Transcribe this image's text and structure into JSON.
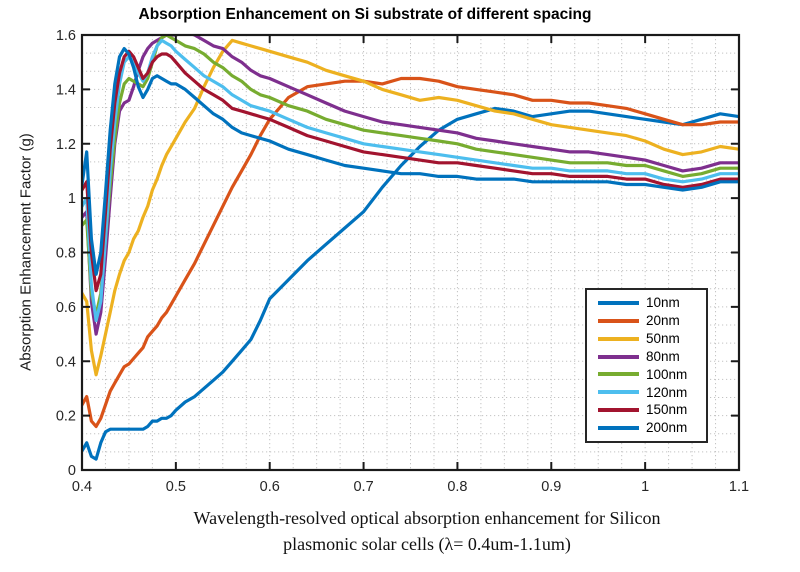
{
  "caption": {
    "line1": "Wavelength-resolved optical absorption enhancement for Silicon",
    "line2": "plasmonic solar cells (λ= 0.4um-1.1um)"
  },
  "chart_data": {
    "type": "line",
    "title": "Absorption Enhancement on Si substrate of different spacing",
    "xlabel": "",
    "ylabel": "Absorption Enhancement Factor (g)",
    "xlim": [
      0.4,
      1.1
    ],
    "ylim": [
      0,
      1.6
    ],
    "xtick_labels": [
      "0.4",
      "0.5",
      "0.6",
      "0.7",
      "0.8",
      "0.9",
      "1",
      "1.1"
    ],
    "xtick_values": [
      0.4,
      0.5,
      0.6,
      0.7,
      0.8,
      0.9,
      1.0,
      1.1
    ],
    "ytick_labels": [
      "0",
      "0.2",
      "0.4",
      "0.6",
      "0.8",
      "1",
      "1.2",
      "1.4",
      "1.6"
    ],
    "ytick_values": [
      0,
      0.2,
      0.4,
      0.6,
      0.8,
      1.0,
      1.2,
      1.4,
      1.6
    ],
    "grid": "dotted-minor",
    "legend_position": "inside-right-middle",
    "frame_color": "#1a1a1a",
    "grid_color": "#c3c3c3",
    "x": [
      0.4,
      0.405,
      0.41,
      0.415,
      0.42,
      0.425,
      0.43,
      0.435,
      0.44,
      0.445,
      0.45,
      0.455,
      0.46,
      0.465,
      0.47,
      0.475,
      0.48,
      0.485,
      0.49,
      0.495,
      0.5,
      0.51,
      0.52,
      0.53,
      0.54,
      0.55,
      0.56,
      0.57,
      0.58,
      0.59,
      0.6,
      0.62,
      0.64,
      0.66,
      0.68,
      0.7,
      0.72,
      0.74,
      0.76,
      0.78,
      0.8,
      0.82,
      0.84,
      0.86,
      0.88,
      0.9,
      0.92,
      0.94,
      0.96,
      0.98,
      1.0,
      1.02,
      1.04,
      1.06,
      1.08,
      1.1
    ],
    "series": [
      {
        "name": "10nm",
        "color": "#0072BD",
        "values": [
          0.07,
          0.1,
          0.05,
          0.04,
          0.1,
          0.14,
          0.15,
          0.15,
          0.15,
          0.15,
          0.15,
          0.15,
          0.15,
          0.15,
          0.16,
          0.18,
          0.18,
          0.19,
          0.19,
          0.2,
          0.22,
          0.25,
          0.27,
          0.3,
          0.33,
          0.36,
          0.4,
          0.44,
          0.48,
          0.55,
          0.63,
          0.7,
          0.77,
          0.83,
          0.89,
          0.95,
          1.04,
          1.12,
          1.19,
          1.25,
          1.29,
          1.31,
          1.33,
          1.32,
          1.3,
          1.31,
          1.32,
          1.32,
          1.31,
          1.3,
          1.29,
          1.28,
          1.27,
          1.29,
          1.31,
          1.3
        ]
      },
      {
        "name": "20nm",
        "color": "#D95319",
        "values": [
          0.24,
          0.27,
          0.18,
          0.16,
          0.19,
          0.24,
          0.29,
          0.32,
          0.35,
          0.38,
          0.39,
          0.41,
          0.43,
          0.45,
          0.49,
          0.51,
          0.53,
          0.56,
          0.58,
          0.61,
          0.64,
          0.7,
          0.76,
          0.83,
          0.9,
          0.97,
          1.04,
          1.1,
          1.16,
          1.23,
          1.29,
          1.37,
          1.41,
          1.42,
          1.43,
          1.43,
          1.42,
          1.44,
          1.44,
          1.43,
          1.41,
          1.4,
          1.39,
          1.38,
          1.36,
          1.36,
          1.35,
          1.35,
          1.34,
          1.33,
          1.31,
          1.29,
          1.27,
          1.27,
          1.28,
          1.28
        ]
      },
      {
        "name": "50nm",
        "color": "#EDB120",
        "values": [
          0.65,
          0.62,
          0.44,
          0.35,
          0.42,
          0.5,
          0.58,
          0.66,
          0.72,
          0.77,
          0.8,
          0.85,
          0.88,
          0.93,
          0.97,
          1.03,
          1.07,
          1.12,
          1.16,
          1.19,
          1.22,
          1.28,
          1.33,
          1.41,
          1.48,
          1.54,
          1.58,
          1.57,
          1.56,
          1.55,
          1.54,
          1.52,
          1.5,
          1.47,
          1.45,
          1.43,
          1.4,
          1.38,
          1.36,
          1.37,
          1.36,
          1.34,
          1.32,
          1.31,
          1.29,
          1.27,
          1.26,
          1.25,
          1.24,
          1.23,
          1.21,
          1.18,
          1.16,
          1.17,
          1.19,
          1.18
        ]
      },
      {
        "name": "80nm",
        "color": "#7E2F8E",
        "values": [
          0.93,
          0.95,
          0.62,
          0.5,
          0.58,
          0.78,
          1.0,
          1.2,
          1.32,
          1.35,
          1.36,
          1.41,
          1.47,
          1.52,
          1.55,
          1.57,
          1.58,
          1.59,
          1.6,
          1.6,
          1.6,
          1.61,
          1.6,
          1.58,
          1.56,
          1.55,
          1.52,
          1.5,
          1.47,
          1.45,
          1.44,
          1.41,
          1.38,
          1.35,
          1.32,
          1.3,
          1.28,
          1.27,
          1.26,
          1.25,
          1.24,
          1.22,
          1.21,
          1.2,
          1.19,
          1.18,
          1.17,
          1.17,
          1.16,
          1.15,
          1.14,
          1.12,
          1.1,
          1.11,
          1.13,
          1.13
        ]
      },
      {
        "name": "100nm",
        "color": "#77AC30",
        "values": [
          0.9,
          0.92,
          0.65,
          0.57,
          0.65,
          0.85,
          1.05,
          1.22,
          1.35,
          1.42,
          1.44,
          1.43,
          1.42,
          1.41,
          1.44,
          1.5,
          1.56,
          1.59,
          1.6,
          1.59,
          1.58,
          1.56,
          1.55,
          1.53,
          1.5,
          1.48,
          1.45,
          1.43,
          1.4,
          1.38,
          1.37,
          1.34,
          1.32,
          1.29,
          1.27,
          1.25,
          1.24,
          1.23,
          1.22,
          1.21,
          1.2,
          1.18,
          1.17,
          1.16,
          1.15,
          1.14,
          1.13,
          1.13,
          1.13,
          1.12,
          1.12,
          1.1,
          1.08,
          1.09,
          1.11,
          1.11
        ]
      },
      {
        "name": "120nm",
        "color": "#4DBEEE",
        "values": [
          0.97,
          1.0,
          0.68,
          0.55,
          0.62,
          0.85,
          1.1,
          1.28,
          1.42,
          1.5,
          1.52,
          1.5,
          1.46,
          1.43,
          1.46,
          1.52,
          1.56,
          1.58,
          1.57,
          1.56,
          1.54,
          1.51,
          1.48,
          1.45,
          1.43,
          1.41,
          1.38,
          1.36,
          1.34,
          1.33,
          1.32,
          1.29,
          1.26,
          1.24,
          1.22,
          1.2,
          1.19,
          1.18,
          1.17,
          1.16,
          1.15,
          1.14,
          1.13,
          1.12,
          1.11,
          1.11,
          1.1,
          1.1,
          1.1,
          1.09,
          1.09,
          1.07,
          1.06,
          1.07,
          1.09,
          1.09
        ]
      },
      {
        "name": "150nm",
        "color": "#A2142F",
        "values": [
          1.03,
          1.06,
          0.8,
          0.66,
          0.72,
          0.95,
          1.18,
          1.35,
          1.46,
          1.52,
          1.54,
          1.52,
          1.48,
          1.44,
          1.46,
          1.5,
          1.52,
          1.53,
          1.53,
          1.52,
          1.5,
          1.46,
          1.43,
          1.4,
          1.38,
          1.36,
          1.33,
          1.32,
          1.31,
          1.3,
          1.29,
          1.26,
          1.23,
          1.21,
          1.19,
          1.17,
          1.16,
          1.15,
          1.14,
          1.13,
          1.13,
          1.12,
          1.11,
          1.1,
          1.09,
          1.09,
          1.08,
          1.08,
          1.08,
          1.07,
          1.07,
          1.05,
          1.04,
          1.05,
          1.07,
          1.07
        ]
      },
      {
        "name": "200nm",
        "color": "#0072BD",
        "values": [
          1.05,
          1.17,
          0.85,
          0.72,
          0.8,
          1.02,
          1.25,
          1.42,
          1.52,
          1.55,
          1.53,
          1.48,
          1.41,
          1.37,
          1.4,
          1.44,
          1.45,
          1.44,
          1.43,
          1.42,
          1.42,
          1.4,
          1.37,
          1.34,
          1.31,
          1.29,
          1.26,
          1.24,
          1.23,
          1.22,
          1.21,
          1.18,
          1.16,
          1.14,
          1.12,
          1.11,
          1.1,
          1.09,
          1.09,
          1.08,
          1.08,
          1.07,
          1.07,
          1.07,
          1.06,
          1.06,
          1.06,
          1.06,
          1.06,
          1.05,
          1.05,
          1.04,
          1.03,
          1.04,
          1.06,
          1.06
        ]
      }
    ]
  }
}
